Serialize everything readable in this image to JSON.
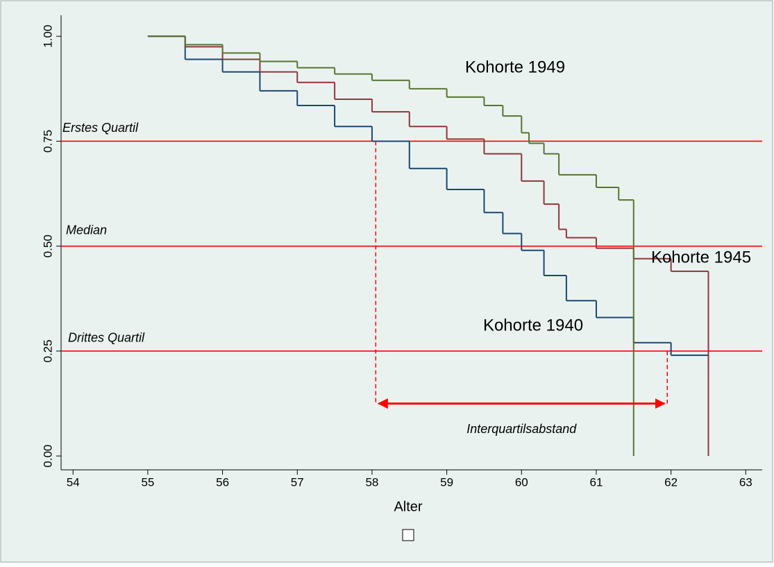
{
  "chart_data": {
    "type": "line",
    "drawstyle": "steps-post",
    "xlabel": "Alter",
    "xlim": [
      53.84,
      63.22
    ],
    "ylim": [
      -0.033,
      1.05
    ],
    "xticks": [
      54,
      55,
      56,
      57,
      58,
      59,
      60,
      61,
      62,
      63
    ],
    "yticks": [
      {
        "value": 0,
        "label": "0.00"
      },
      {
        "value": 0.25,
        "label": "0.25"
      },
      {
        "value": 0.5,
        "label": "0.50"
      },
      {
        "value": 0.75,
        "label": "0.75"
      },
      {
        "value": 1,
        "label": "1.00"
      }
    ],
    "series": [
      {
        "name": "Kohorte 1940",
        "color": "#1a476f",
        "x": [
          55,
          55.5,
          55.5,
          56,
          56.5,
          57,
          57.5,
          58,
          58.5,
          59,
          59.5,
          59.75,
          60,
          60.3,
          60.6,
          61,
          61.5,
          61.5,
          62,
          62.5
        ],
        "values": [
          1.0,
          0.97,
          0.945,
          0.915,
          0.87,
          0.835,
          0.785,
          0.75,
          0.685,
          0.635,
          0.58,
          0.53,
          0.49,
          0.43,
          0.37,
          0.33,
          0.285,
          0.27,
          0.24,
          0.205
        ]
      },
      {
        "name": "Kohorte 1945",
        "color": "#90353b",
        "x": [
          55,
          55.5,
          56,
          56.5,
          57,
          57.5,
          58,
          58.5,
          59,
          59.5,
          60,
          60.3,
          60.5,
          60.6,
          61,
          61.5,
          62,
          62.5,
          62.5
        ],
        "values": [
          1.0,
          0.975,
          0.945,
          0.915,
          0.89,
          0.85,
          0.82,
          0.785,
          0.755,
          0.72,
          0.655,
          0.6,
          0.54,
          0.52,
          0.495,
          0.47,
          0.44,
          0.4,
          0.0
        ]
      },
      {
        "name": "Kohorte 1949",
        "color": "#55752f",
        "x": [
          55,
          55.5,
          56,
          56.5,
          57,
          57.5,
          58,
          58.5,
          59,
          59.5,
          59.75,
          60,
          60.1,
          60.3,
          60.5,
          61,
          61.3,
          61.5,
          61.5
        ],
        "values": [
          1.0,
          0.98,
          0.96,
          0.94,
          0.925,
          0.91,
          0.895,
          0.875,
          0.855,
          0.835,
          0.81,
          0.77,
          0.745,
          0.72,
          0.67,
          0.64,
          0.61,
          0.585,
          0.0
        ]
      }
    ],
    "quartiles": [
      {
        "label": "Erstes Quartil",
        "value": 0.75
      },
      {
        "label": "Median",
        "value": 0.5
      },
      {
        "label": "Drittes Quartil",
        "value": 0.25
      }
    ],
    "reference_color": "#ff0000",
    "interquartile": {
      "label": "Interquartilsabstand",
      "from": 58.05,
      "to": 61.95,
      "at": 0.125
    }
  }
}
